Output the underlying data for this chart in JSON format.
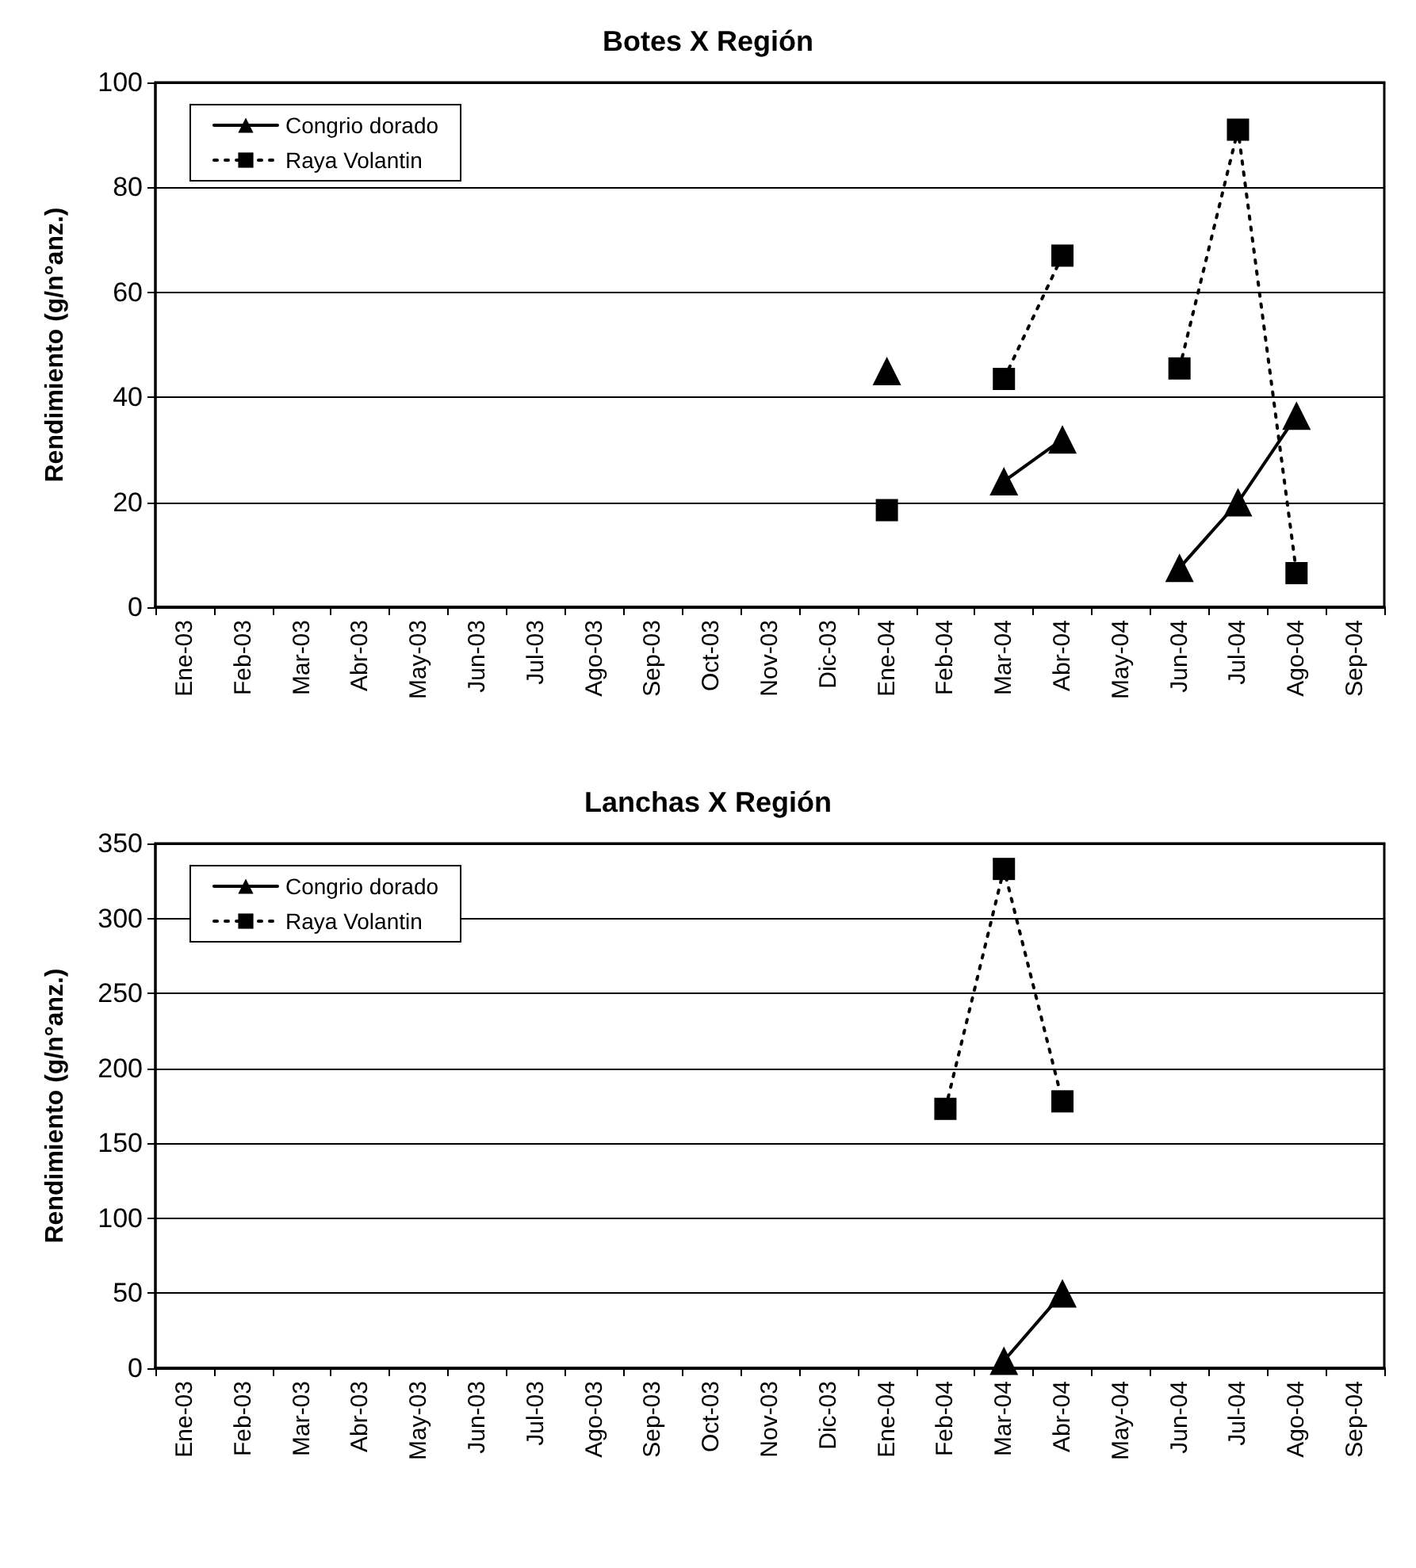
{
  "chart_data": [
    {
      "type": "line",
      "title": "Botes X Región",
      "ylabel": "Rendimiento (g/n°anz.)",
      "categories": [
        "Ene-03",
        "Feb-03",
        "Mar-03",
        "Abr-03",
        "May-03",
        "Jun-03",
        "Jul-03",
        "Ago-03",
        "Sep-03",
        "Oct-03",
        "Nov-03",
        "Dic-03",
        "Ene-04",
        "Feb-04",
        "Mar-04",
        "Abr-04",
        "May-04",
        "Jun-04",
        "Jul-04",
        "Ago-04",
        "Sep-04"
      ],
      "series": [
        {
          "name": "Congrio dorado",
          "color": "#000000",
          "marker": "triangle",
          "line_style": "solid",
          "values": [
            null,
            null,
            null,
            null,
            null,
            null,
            null,
            null,
            null,
            null,
            null,
            null,
            45,
            null,
            24,
            32,
            null,
            7.5,
            20,
            36.5,
            null
          ]
        },
        {
          "name": "Raya Volantin",
          "color": "#000000",
          "marker": "square",
          "line_style": "dotted",
          "values": [
            null,
            null,
            null,
            null,
            null,
            null,
            null,
            null,
            null,
            null,
            null,
            null,
            18.5,
            null,
            43.5,
            67,
            null,
            45.5,
            91,
            6.5,
            null
          ]
        }
      ],
      "ylim": [
        0,
        100
      ],
      "yticks": [
        0,
        20,
        40,
        60,
        80,
        100
      ],
      "grid": "y",
      "legend": "top left"
    },
    {
      "type": "line",
      "title": "Lanchas X Región",
      "ylabel": "Rendimiento (g/n°anz.)",
      "categories": [
        "Ene-03",
        "Feb-03",
        "Mar-03",
        "Abr-03",
        "May-03",
        "Jun-03",
        "Jul-03",
        "Ago-03",
        "Sep-03",
        "Oct-03",
        "Nov-03",
        "Dic-03",
        "Ene-04",
        "Feb-04",
        "Mar-04",
        "Abr-04",
        "May-04",
        "Jun-04",
        "Jul-04",
        "Ago-04",
        "Sep-04"
      ],
      "series": [
        {
          "name": "Congrio dorado",
          "color": "#000000",
          "marker": "triangle",
          "line_style": "solid",
          "values": [
            null,
            null,
            null,
            null,
            null,
            null,
            null,
            null,
            null,
            null,
            null,
            null,
            null,
            null,
            5,
            50,
            null,
            null,
            null,
            null,
            null
          ]
        },
        {
          "name": "Raya Volantin",
          "color": "#000000",
          "marker": "square",
          "line_style": "dotted",
          "values": [
            null,
            null,
            null,
            null,
            null,
            null,
            null,
            null,
            null,
            null,
            null,
            null,
            null,
            173,
            333,
            178,
            null,
            null,
            null,
            null,
            null
          ]
        }
      ],
      "ylim": [
        0,
        350
      ],
      "yticks": [
        0,
        50,
        100,
        150,
        200,
        250,
        300,
        350
      ],
      "grid": "y",
      "legend": "top left"
    }
  ]
}
